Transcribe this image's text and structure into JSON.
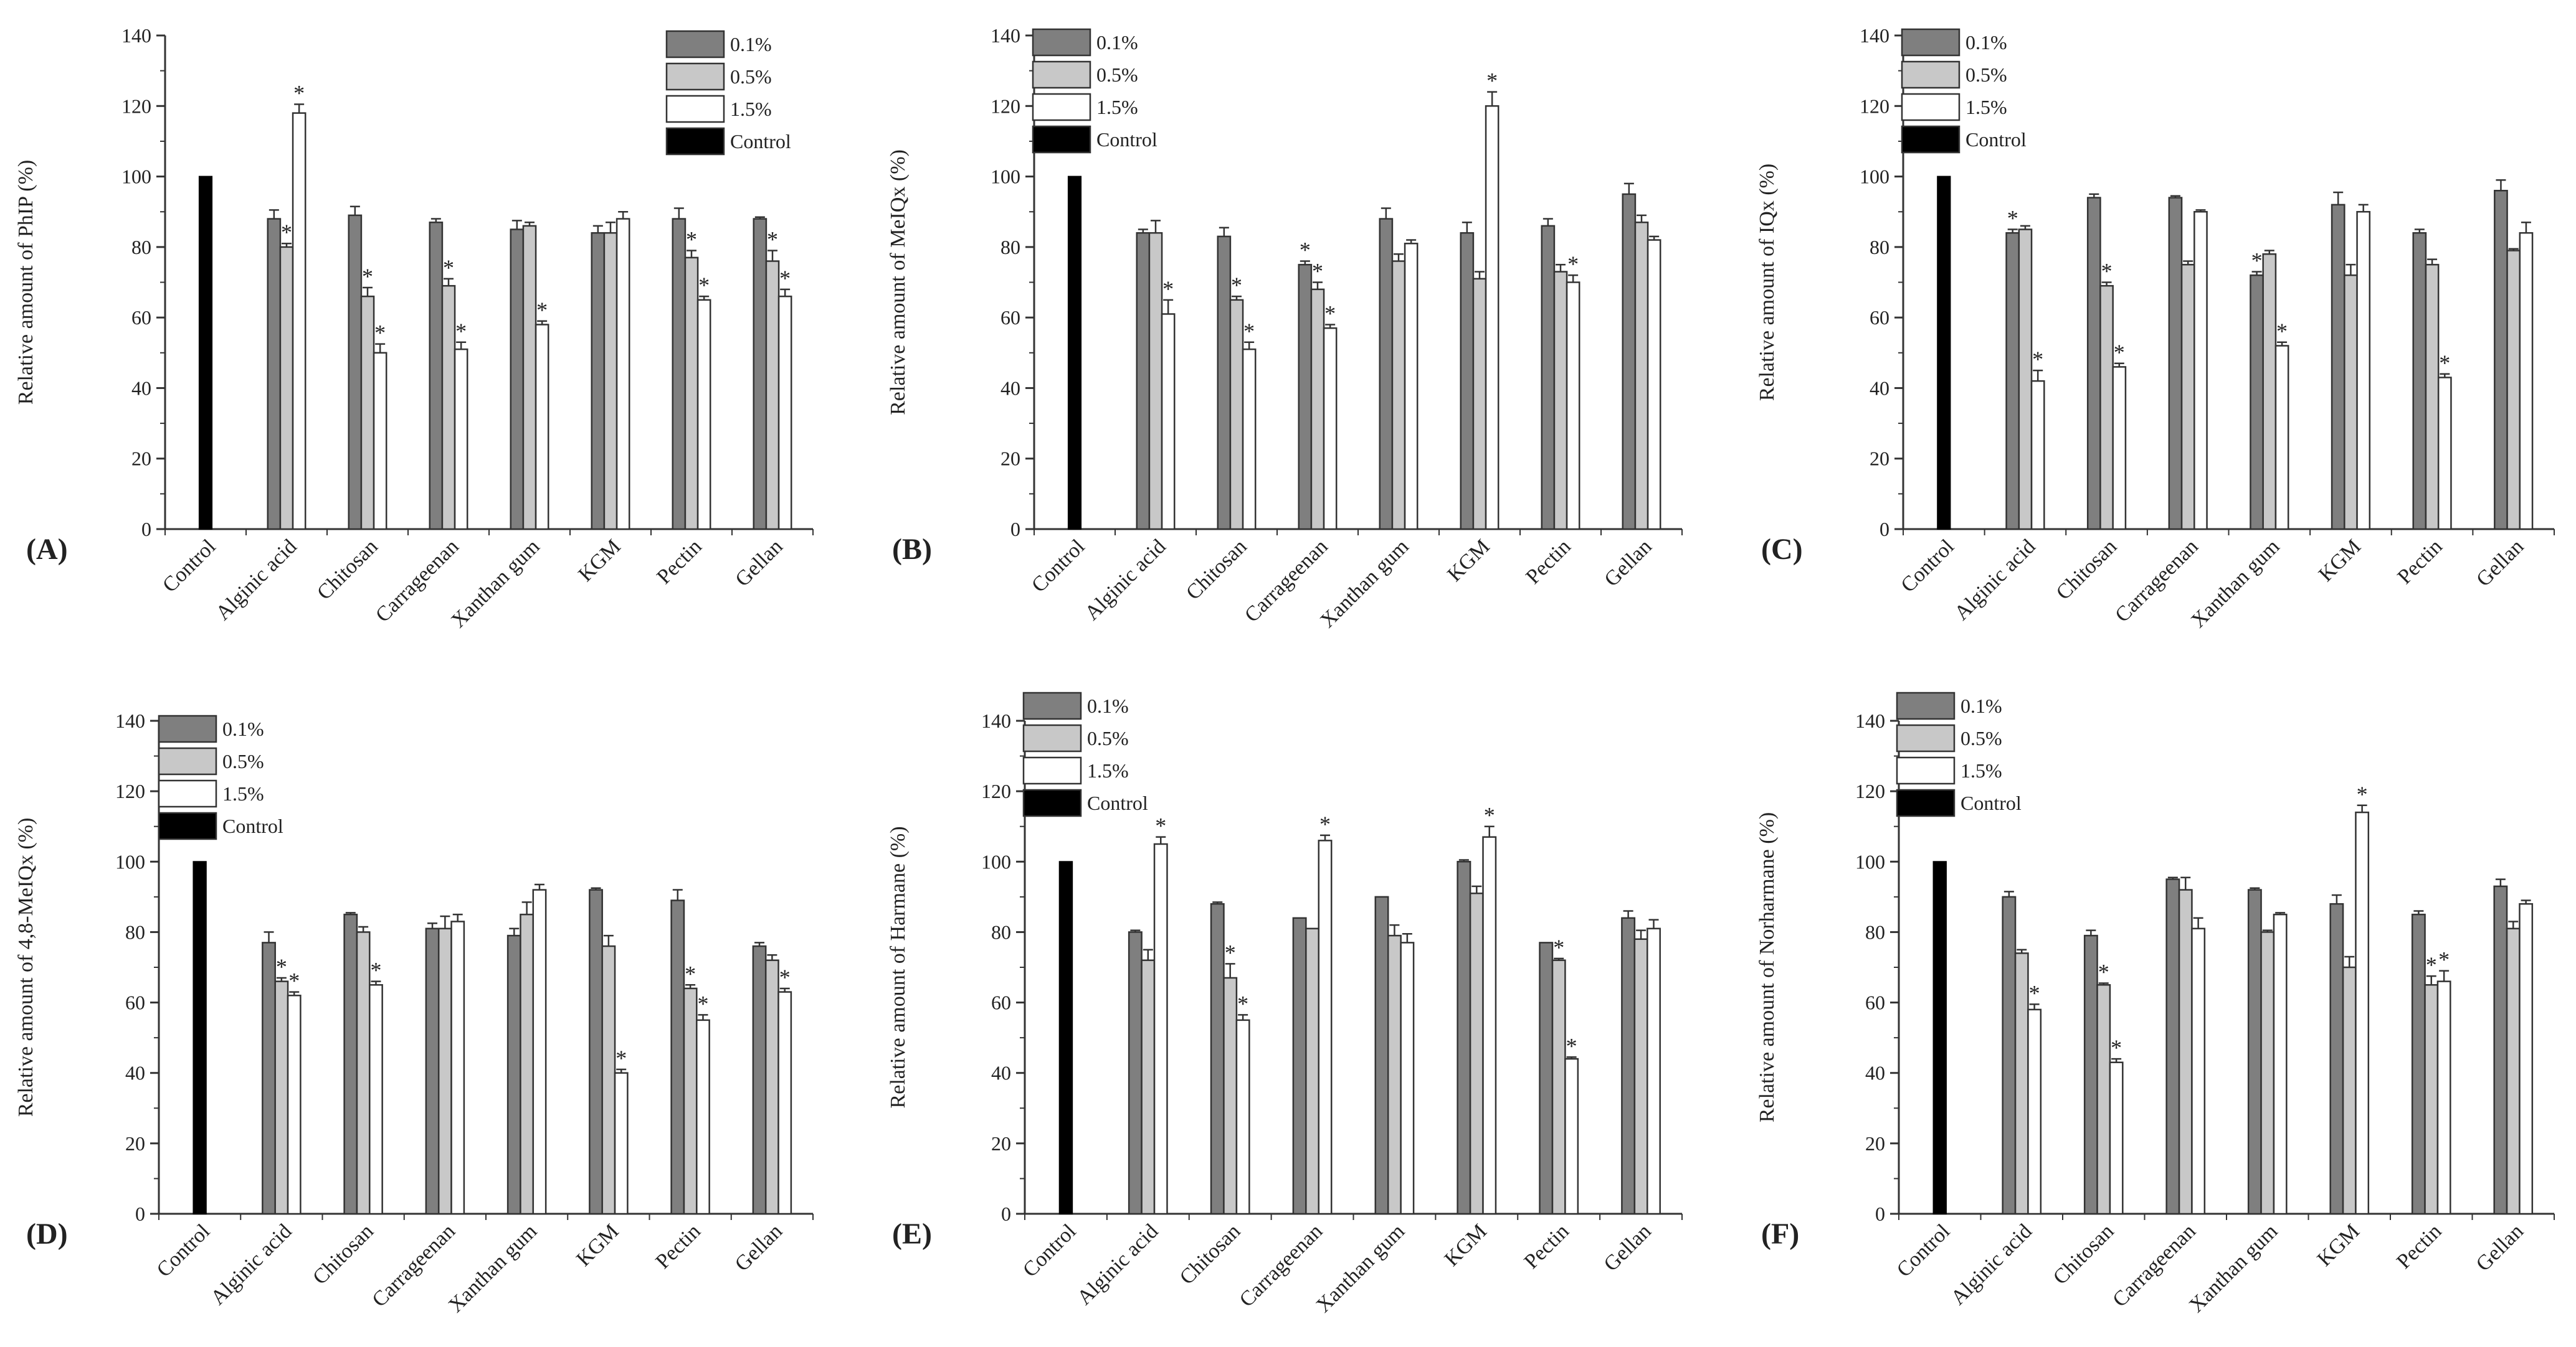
{
  "figure": {
    "legend_labels": [
      "0.1%",
      "0.5%",
      "1.5%",
      "Control"
    ],
    "colors": {
      "c01": "#7f7f7f",
      "c05": "#c8c8c8",
      "c15": "#ffffff",
      "control": "#000000",
      "axis": "#333333"
    }
  },
  "chart_data": [
    {
      "type": "bar",
      "panel": "(A)",
      "ylabel": "Relative amount of PhIP (%)",
      "ylim": [
        0,
        140
      ],
      "yticks": [
        "0",
        "20",
        "40",
        "60",
        "80",
        "100",
        "120",
        "140"
      ],
      "legend_position": "top-right",
      "categories": [
        "Control",
        "Alginic acid",
        "Chitosan",
        "Carrageenan",
        "Xanthan gum",
        "KGM",
        "Pectin",
        "Gellan"
      ],
      "control": 100,
      "series": [
        {
          "name": "0.1%",
          "values": [
            null,
            88,
            89,
            87,
            85,
            84,
            88,
            88
          ],
          "errors": [
            null,
            2.5,
            2.5,
            1,
            2.5,
            2,
            3,
            0.5
          ],
          "sig": [
            null,
            false,
            false,
            false,
            false,
            false,
            false,
            false
          ]
        },
        {
          "name": "0.5%",
          "values": [
            null,
            80,
            66,
            69,
            86,
            84,
            77,
            76
          ],
          "errors": [
            null,
            1,
            2.5,
            2,
            1,
            3,
            2,
            3
          ],
          "sig": [
            null,
            true,
            true,
            true,
            false,
            false,
            true,
            true
          ]
        },
        {
          "name": "1.5%",
          "values": [
            null,
            118,
            50,
            51,
            58,
            88,
            65,
            66
          ],
          "errors": [
            null,
            2.5,
            2.5,
            2,
            1,
            2,
            1,
            2
          ],
          "sig": [
            null,
            true,
            true,
            true,
            true,
            false,
            true,
            true
          ]
        }
      ],
      "sig_symbol": "*"
    },
    {
      "type": "bar",
      "panel": "(B)",
      "ylabel": "Relative amount of MeIQx (%)",
      "ylim": [
        0,
        140
      ],
      "yticks": [
        "0",
        "20",
        "40",
        "60",
        "80",
        "100",
        "120",
        "140"
      ],
      "legend_position": "top-left",
      "categories": [
        "Control",
        "Alginic acid",
        "Chitosan",
        "Carrageenan",
        "Xanthan gum",
        "KGM",
        "Pectin",
        "Gellan"
      ],
      "control": 100,
      "series": [
        {
          "name": "0.1%",
          "values": [
            null,
            84,
            83,
            75,
            88,
            84,
            86,
            95
          ],
          "errors": [
            null,
            1,
            2.5,
            1,
            3,
            3,
            2,
            3
          ],
          "sig": [
            null,
            false,
            false,
            true,
            false,
            false,
            false,
            false
          ]
        },
        {
          "name": "0.5%",
          "values": [
            null,
            84,
            65,
            68,
            76,
            71,
            73,
            87
          ],
          "errors": [
            null,
            3.5,
            1,
            2,
            2,
            2,
            2,
            2
          ],
          "sig": [
            null,
            false,
            true,
            true,
            false,
            false,
            false,
            false
          ]
        },
        {
          "name": "1.5%",
          "values": [
            null,
            61,
            51,
            57,
            81,
            120,
            70,
            82
          ],
          "errors": [
            null,
            4,
            2,
            1,
            1,
            4,
            2,
            1
          ],
          "sig": [
            null,
            true,
            true,
            true,
            false,
            true,
            true,
            false
          ]
        }
      ],
      "sig_symbol": "*"
    },
    {
      "type": "bar",
      "panel": "(C)",
      "ylabel": "Relative amount of IQx (%)",
      "ylim": [
        0,
        140
      ],
      "yticks": [
        "0",
        "20",
        "40",
        "60",
        "80",
        "100",
        "120",
        "140"
      ],
      "legend_position": "top-left",
      "categories": [
        "Control",
        "Alginic acid",
        "Chitosan",
        "Carrageenan",
        "Xanthan gum",
        "KGM",
        "Pectin",
        "Gellan"
      ],
      "control": 100,
      "series": [
        {
          "name": "0.1%",
          "values": [
            null,
            84,
            94,
            94,
            72,
            92,
            84,
            96
          ],
          "errors": [
            null,
            1,
            1,
            0.5,
            1,
            3.5,
            1,
            3
          ],
          "sig": [
            null,
            true,
            false,
            false,
            true,
            false,
            false,
            false
          ]
        },
        {
          "name": "0.5%",
          "values": [
            null,
            85,
            69,
            75,
            78,
            72,
            75,
            79
          ],
          "errors": [
            null,
            1,
            1,
            1,
            1,
            3,
            1.5,
            0.5
          ],
          "sig": [
            null,
            false,
            true,
            false,
            false,
            false,
            false,
            false
          ]
        },
        {
          "name": "1.5%",
          "values": [
            null,
            42,
            46,
            90,
            52,
            90,
            43,
            84
          ],
          "errors": [
            null,
            3,
            1,
            0.5,
            1,
            2,
            1,
            3
          ],
          "sig": [
            null,
            true,
            true,
            false,
            true,
            false,
            true,
            false
          ]
        }
      ],
      "sig_symbol": "*"
    },
    {
      "type": "bar",
      "panel": "(D)",
      "ylabel": "Relative amount of 4,8-MeIQx (%)",
      "ylim": [
        0,
        140
      ],
      "yticks": [
        "0",
        "20",
        "40",
        "60",
        "80",
        "100",
        "120",
        "140"
      ],
      "legend_position": "top-left",
      "categories": [
        "Control",
        "Alginic acid",
        "Chitosan",
        "Carrageenan",
        "Xanthan gum",
        "KGM",
        "Pectin",
        "Gellan"
      ],
      "control": 100,
      "series": [
        {
          "name": "0.1%",
          "values": [
            null,
            77,
            85,
            81,
            79,
            92,
            89,
            76
          ],
          "errors": [
            null,
            3,
            0.5,
            1.5,
            2,
            0.5,
            3,
            1
          ],
          "sig": [
            null,
            false,
            false,
            false,
            false,
            false,
            false,
            false
          ]
        },
        {
          "name": "0.5%",
          "values": [
            null,
            66,
            80,
            81,
            85,
            76,
            64,
            72
          ],
          "errors": [
            null,
            1,
            1.5,
            3.5,
            3.5,
            3,
            1,
            1.5
          ],
          "sig": [
            null,
            true,
            false,
            false,
            false,
            false,
            true,
            false
          ]
        },
        {
          "name": "1.5%",
          "values": [
            null,
            62,
            65,
            83,
            92,
            40,
            55,
            63
          ],
          "errors": [
            null,
            1,
            1,
            2,
            1.5,
            1,
            1.5,
            1
          ],
          "sig": [
            null,
            true,
            true,
            false,
            false,
            true,
            true,
            true
          ]
        }
      ],
      "sig_symbol": "*"
    },
    {
      "type": "bar",
      "panel": "(E)",
      "ylabel": "Relative amount of Harmane (%)",
      "ylim": [
        0,
        140
      ],
      "yticks": [
        "0",
        "20",
        "40",
        "60",
        "80",
        "100",
        "120",
        "140"
      ],
      "legend_position": "top-left",
      "categories": [
        "Control",
        "Alginic acid",
        "Chitosan",
        "Carrageenan",
        "Xanthan gum",
        "KGM",
        "Pectin",
        "Gellan"
      ],
      "control": 100,
      "series": [
        {
          "name": "0.1%",
          "values": [
            null,
            80,
            88,
            84,
            90,
            100,
            77,
            84
          ],
          "errors": [
            null,
            0.5,
            0.5,
            0,
            0,
            0.5,
            0,
            2
          ],
          "sig": [
            null,
            false,
            false,
            false,
            false,
            false,
            false,
            false
          ]
        },
        {
          "name": "0.5%",
          "values": [
            null,
            72,
            67,
            81,
            79,
            91,
            72,
            78
          ],
          "errors": [
            null,
            3,
            4,
            0,
            3,
            2,
            0.5,
            2.5
          ],
          "sig": [
            null,
            false,
            true,
            false,
            false,
            false,
            true,
            false
          ]
        },
        {
          "name": "1.5%",
          "values": [
            null,
            105,
            55,
            106,
            77,
            107,
            44,
            81
          ],
          "errors": [
            null,
            2,
            1.5,
            1.5,
            2.5,
            3,
            0.5,
            2.5
          ],
          "sig": [
            null,
            true,
            true,
            true,
            false,
            true,
            true,
            false
          ]
        }
      ],
      "sig_symbol": "*"
    },
    {
      "type": "bar",
      "panel": "(F)",
      "ylabel": "Relative amount of Norharmane (%)",
      "ylim": [
        0,
        140
      ],
      "yticks": [
        "0",
        "20",
        "40",
        "60",
        "80",
        "100",
        "120",
        "140"
      ],
      "legend_position": "top-left",
      "categories": [
        "Control",
        "Alginic acid",
        "Chitosan",
        "Carrageenan",
        "Xanthan gum",
        "KGM",
        "Pectin",
        "Gellan"
      ],
      "control": 100,
      "series": [
        {
          "name": "0.1%",
          "values": [
            null,
            90,
            79,
            95,
            92,
            88,
            85,
            93
          ],
          "errors": [
            null,
            1.5,
            1.5,
            0.5,
            0.5,
            2.5,
            1,
            2
          ],
          "sig": [
            null,
            false,
            false,
            false,
            false,
            false,
            false,
            false
          ]
        },
        {
          "name": "0.5%",
          "values": [
            null,
            74,
            65,
            92,
            80,
            70,
            65,
            81
          ],
          "errors": [
            null,
            1,
            0.5,
            3.5,
            0.5,
            3,
            2.5,
            2
          ],
          "sig": [
            null,
            false,
            true,
            false,
            false,
            false,
            true,
            false
          ]
        },
        {
          "name": "1.5%",
          "values": [
            null,
            58,
            43,
            81,
            85,
            114,
            66,
            88
          ],
          "errors": [
            null,
            1.5,
            1,
            3,
            0.5,
            2,
            3,
            1
          ],
          "sig": [
            null,
            true,
            true,
            false,
            false,
            true,
            true,
            false
          ]
        }
      ],
      "sig_symbol": "*"
    }
  ]
}
